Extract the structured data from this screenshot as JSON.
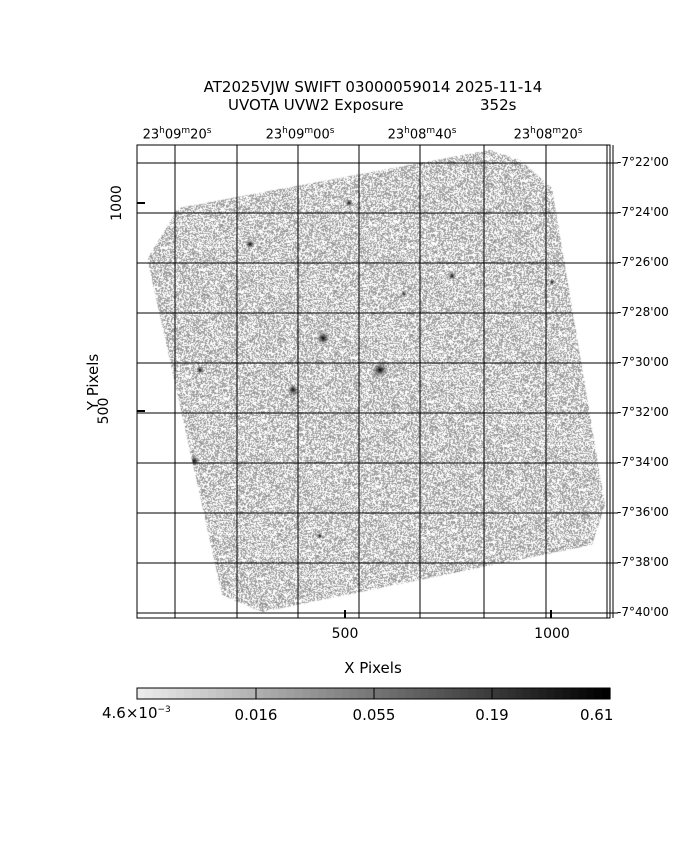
{
  "title": {
    "line1": "AT2025VJW SWIFT 03000059014 2025-11-14",
    "line2_left": "UVOTA UVW2 Exposure",
    "line2_right": "352s"
  },
  "chart_data": {
    "type": "heatmap",
    "xlabel": "X Pixels",
    "ylabel": "Y Pixels",
    "x_ticks": [
      500,
      1000
    ],
    "y_ticks": [
      500,
      1000
    ],
    "x_tick_labels": [
      "500",
      "1000"
    ],
    "y_tick_labels": [
      "500",
      "1000"
    ],
    "xlim": [
      0,
      1150
    ],
    "ylim": [
      0,
      1150
    ],
    "grid": true,
    "ra_ticks": [
      {
        "h": "23",
        "m": "09",
        "s": "20"
      },
      {
        "h": "23",
        "m": "09",
        "s": "00"
      },
      {
        "h": "23",
        "m": "08",
        "s": "40"
      },
      {
        "h": "23",
        "m": "08",
        "s": "20"
      }
    ],
    "dec_ticks": [
      "-7°22'00",
      "-7°24'00",
      "-7°26'00",
      "-7°28'00",
      "-7°30'00",
      "-7°32'00",
      "-7°34'00",
      "-7°36'00",
      "-7°38'00",
      "-7°40'00"
    ],
    "colorbar": {
      "scale": "log",
      "colormap": "grayscale (light to dark)",
      "tick_labels": [
        "4.6×10",
        "0.016",
        "0.055",
        "0.19",
        "0.61"
      ],
      "first_exponent": "−3",
      "min": 0.0046,
      "max": 0.61
    }
  }
}
